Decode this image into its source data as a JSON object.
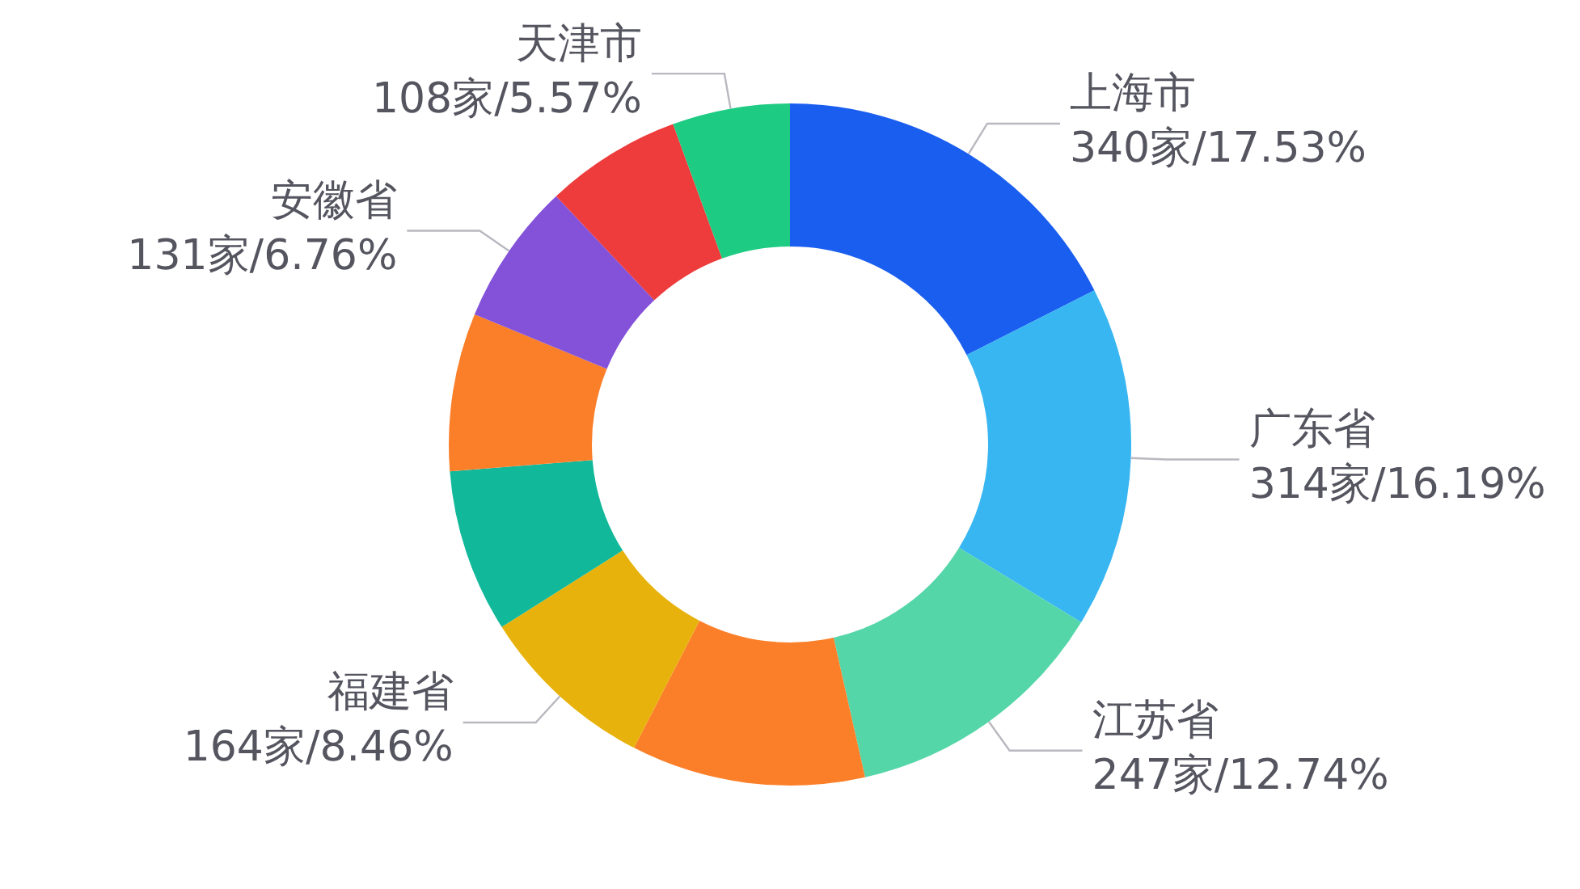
{
  "chart_data": {
    "type": "donut",
    "categories": [
      "上海市",
      "广东省",
      "江苏省",
      null,
      "福建省",
      null,
      null,
      "安徽省",
      null,
      "天津市"
    ],
    "values": [
      340,
      314,
      247,
      215,
      164,
      150,
      145,
      131,
      125,
      108
    ],
    "value_labels": [
      "340家/17.53%",
      "314家/16.19%",
      "247家/12.74%",
      null,
      "164家/8.46%",
      null,
      null,
      "131家/6.76%",
      null,
      "108家/5.57%"
    ],
    "colors": [
      "#1a5ef0",
      "#38b6f2",
      "#55d6a8",
      "#fb7f29",
      "#e8b20c",
      "#12b89a",
      "#fb7f29",
      "#8452d9",
      "#ee3b3b",
      "#1ecb82"
    ],
    "legend": false
  }
}
